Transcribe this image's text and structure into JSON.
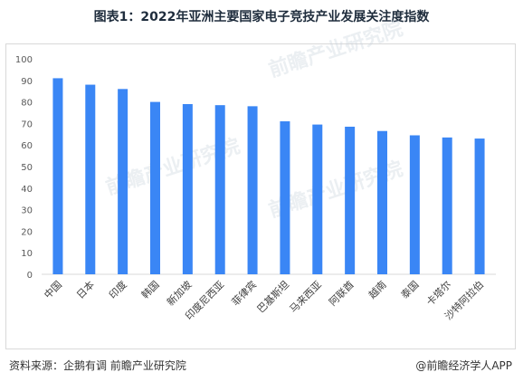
{
  "title": "图表1：2022年亚洲主要国家电子竞技产业发展关注度指数",
  "footer": {
    "source": "资料来源：企鹅有调 前瞻产业研究院",
    "credit": "@前瞻经济学人APP"
  },
  "watermark_text": "前瞻产业研究院",
  "colors": {
    "bar": "#3a86f5",
    "axis": "#d9d9d9",
    "frame": "#d9d9d9"
  },
  "chart_data": {
    "type": "bar",
    "categories": [
      "中国",
      "日本",
      "印度",
      "韩国",
      "新加坡",
      "印度尼西亚",
      "菲律宾",
      "巴基斯坦",
      "马来西亚",
      "阿联酋",
      "越南",
      "泰国",
      "卡塔尔",
      "沙特阿拉伯"
    ],
    "values": [
      91,
      88,
      86,
      80,
      79,
      78.5,
      78,
      71,
      69.5,
      68.5,
      66.5,
      64.5,
      63.5,
      63
    ],
    "ylim": [
      0,
      100
    ],
    "yticks": [
      0,
      10,
      20,
      30,
      40,
      50,
      60,
      70,
      80,
      90,
      100
    ],
    "grid": false,
    "legend": "none"
  }
}
